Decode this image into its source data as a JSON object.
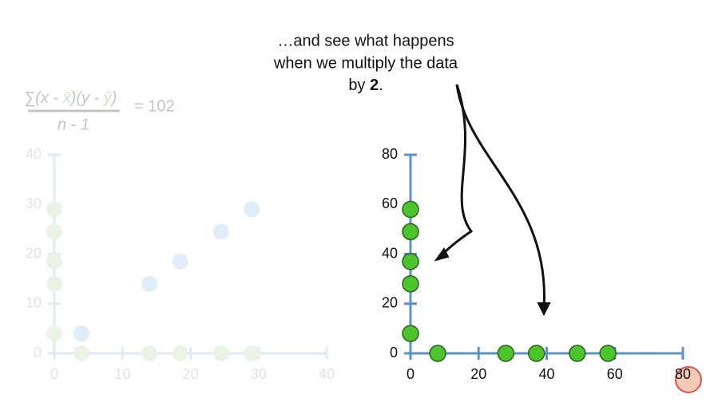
{
  "formula": {
    "numerator": [
      "∑(x - ",
      "x̄",
      ")(y - ",
      "ȳ",
      ")"
    ],
    "denominator": "n - 1",
    "result": "= 102"
  },
  "annotation": {
    "lines": [
      "…and see what happens",
      "when we multiply the data",
      "by"
    ],
    "emphasis": "2",
    "end": "."
  },
  "chart_data": [
    {
      "type": "scatter",
      "opacity": 0.28,
      "axis_color": "#8fb5dd",
      "xlim": [
        0,
        40
      ],
      "ylim": [
        0,
        40
      ],
      "xticks": [
        0,
        10,
        20,
        30,
        40
      ],
      "yticks": [
        0,
        10,
        20,
        30,
        40
      ],
      "series": [
        {
          "color": "#8fc2ef",
          "x": [
            4,
            14,
            18.5,
            24.5,
            29
          ],
          "y": [
            4,
            14,
            18.5,
            24.5,
            29
          ]
        },
        {
          "color": "#b6d7a0",
          "x": [
            0,
            0,
            0,
            0,
            0
          ],
          "y": [
            4,
            14,
            18.5,
            24.5,
            29
          ]
        },
        {
          "color": "#b6d7a0",
          "x": [
            4,
            14,
            18.5,
            24.5,
            29
          ],
          "y": [
            0,
            0,
            0,
            0,
            0
          ]
        }
      ]
    },
    {
      "type": "scatter",
      "opacity": 1,
      "axis_color": "#5b93c9",
      "xlim": [
        0,
        80
      ],
      "ylim": [
        0,
        80
      ],
      "xticks": [
        0,
        20,
        40,
        60,
        80
      ],
      "yticks": [
        0,
        20,
        40,
        60,
        80
      ],
      "series": [
        {
          "color": "#4cc42c",
          "x": [
            0,
            0,
            0,
            0,
            0
          ],
          "y": [
            8,
            28,
            37,
            49,
            58
          ]
        },
        {
          "color": "#4cc42c",
          "x": [
            8,
            28,
            37,
            49,
            58
          ],
          "y": [
            0,
            0,
            0,
            0,
            0
          ]
        }
      ]
    }
  ]
}
